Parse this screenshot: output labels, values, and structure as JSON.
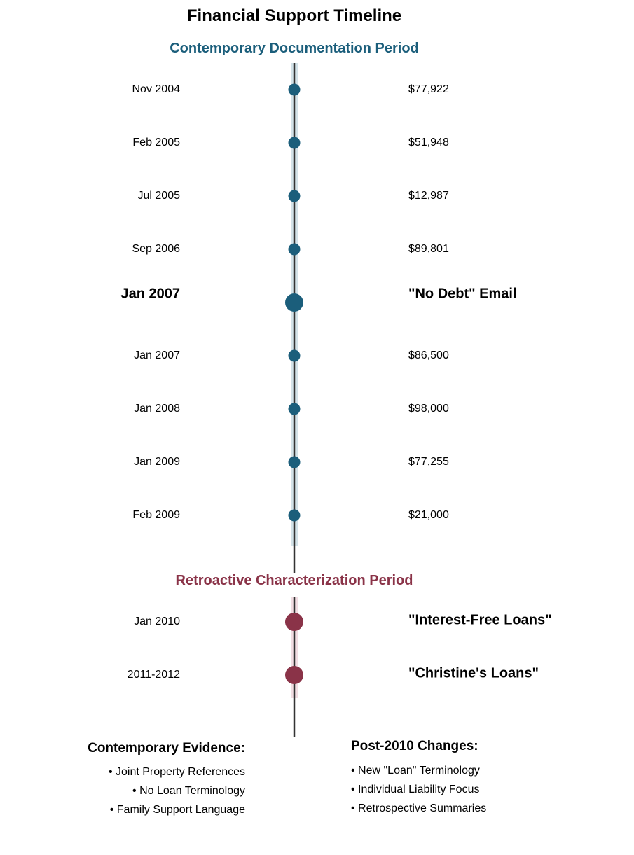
{
  "title": "Financial Support Timeline",
  "colors": {
    "contemporary": "#1b5e7b",
    "contemporary_band": "#d3e2e8",
    "retro": "#8a3348",
    "retro_band": "#f1dde2",
    "axis": "#333333",
    "text": "#000000"
  },
  "sections": [
    {
      "title": "Contemporary Documentation Period",
      "color_key": "contemporary",
      "events": [
        {
          "date": "Nov 2004",
          "label": "$77,922",
          "emphasis": false
        },
        {
          "date": "Feb 2005",
          "label": "$51,948",
          "emphasis": false
        },
        {
          "date": "Jul 2005",
          "label": "$12,987",
          "emphasis": false
        },
        {
          "date": "Sep 2006",
          "label": "$89,801",
          "emphasis": false
        },
        {
          "date": "Jan 2007",
          "label": "\"No Debt\" Email",
          "emphasis": true
        },
        {
          "date": "Jan 2007",
          "label": "$86,500",
          "emphasis": false
        },
        {
          "date": "Jan 2008",
          "label": "$98,000",
          "emphasis": false
        },
        {
          "date": "Jan 2009",
          "label": "$77,255",
          "emphasis": false
        },
        {
          "date": "Feb 2009",
          "label": "$21,000",
          "emphasis": false
        }
      ]
    },
    {
      "title": "Retroactive Characterization Period",
      "color_key": "retro",
      "events": [
        {
          "date": "Jan 2010",
          "label": "\"Interest-Free Loans\"",
          "emphasis": true
        },
        {
          "date": "2011-2012",
          "label": "\"Christine's Loans\"",
          "emphasis": true
        }
      ]
    }
  ],
  "evidence": {
    "left": {
      "title": "Contemporary Evidence:",
      "items": [
        "• Joint Property References",
        "• No Loan Terminology",
        "• Family Support Language"
      ]
    },
    "right": {
      "title": "Post-2010 Changes:",
      "items": [
        "• New \"Loan\" Terminology",
        "• Individual Liability Focus",
        "• Retrospective Summaries"
      ]
    }
  }
}
